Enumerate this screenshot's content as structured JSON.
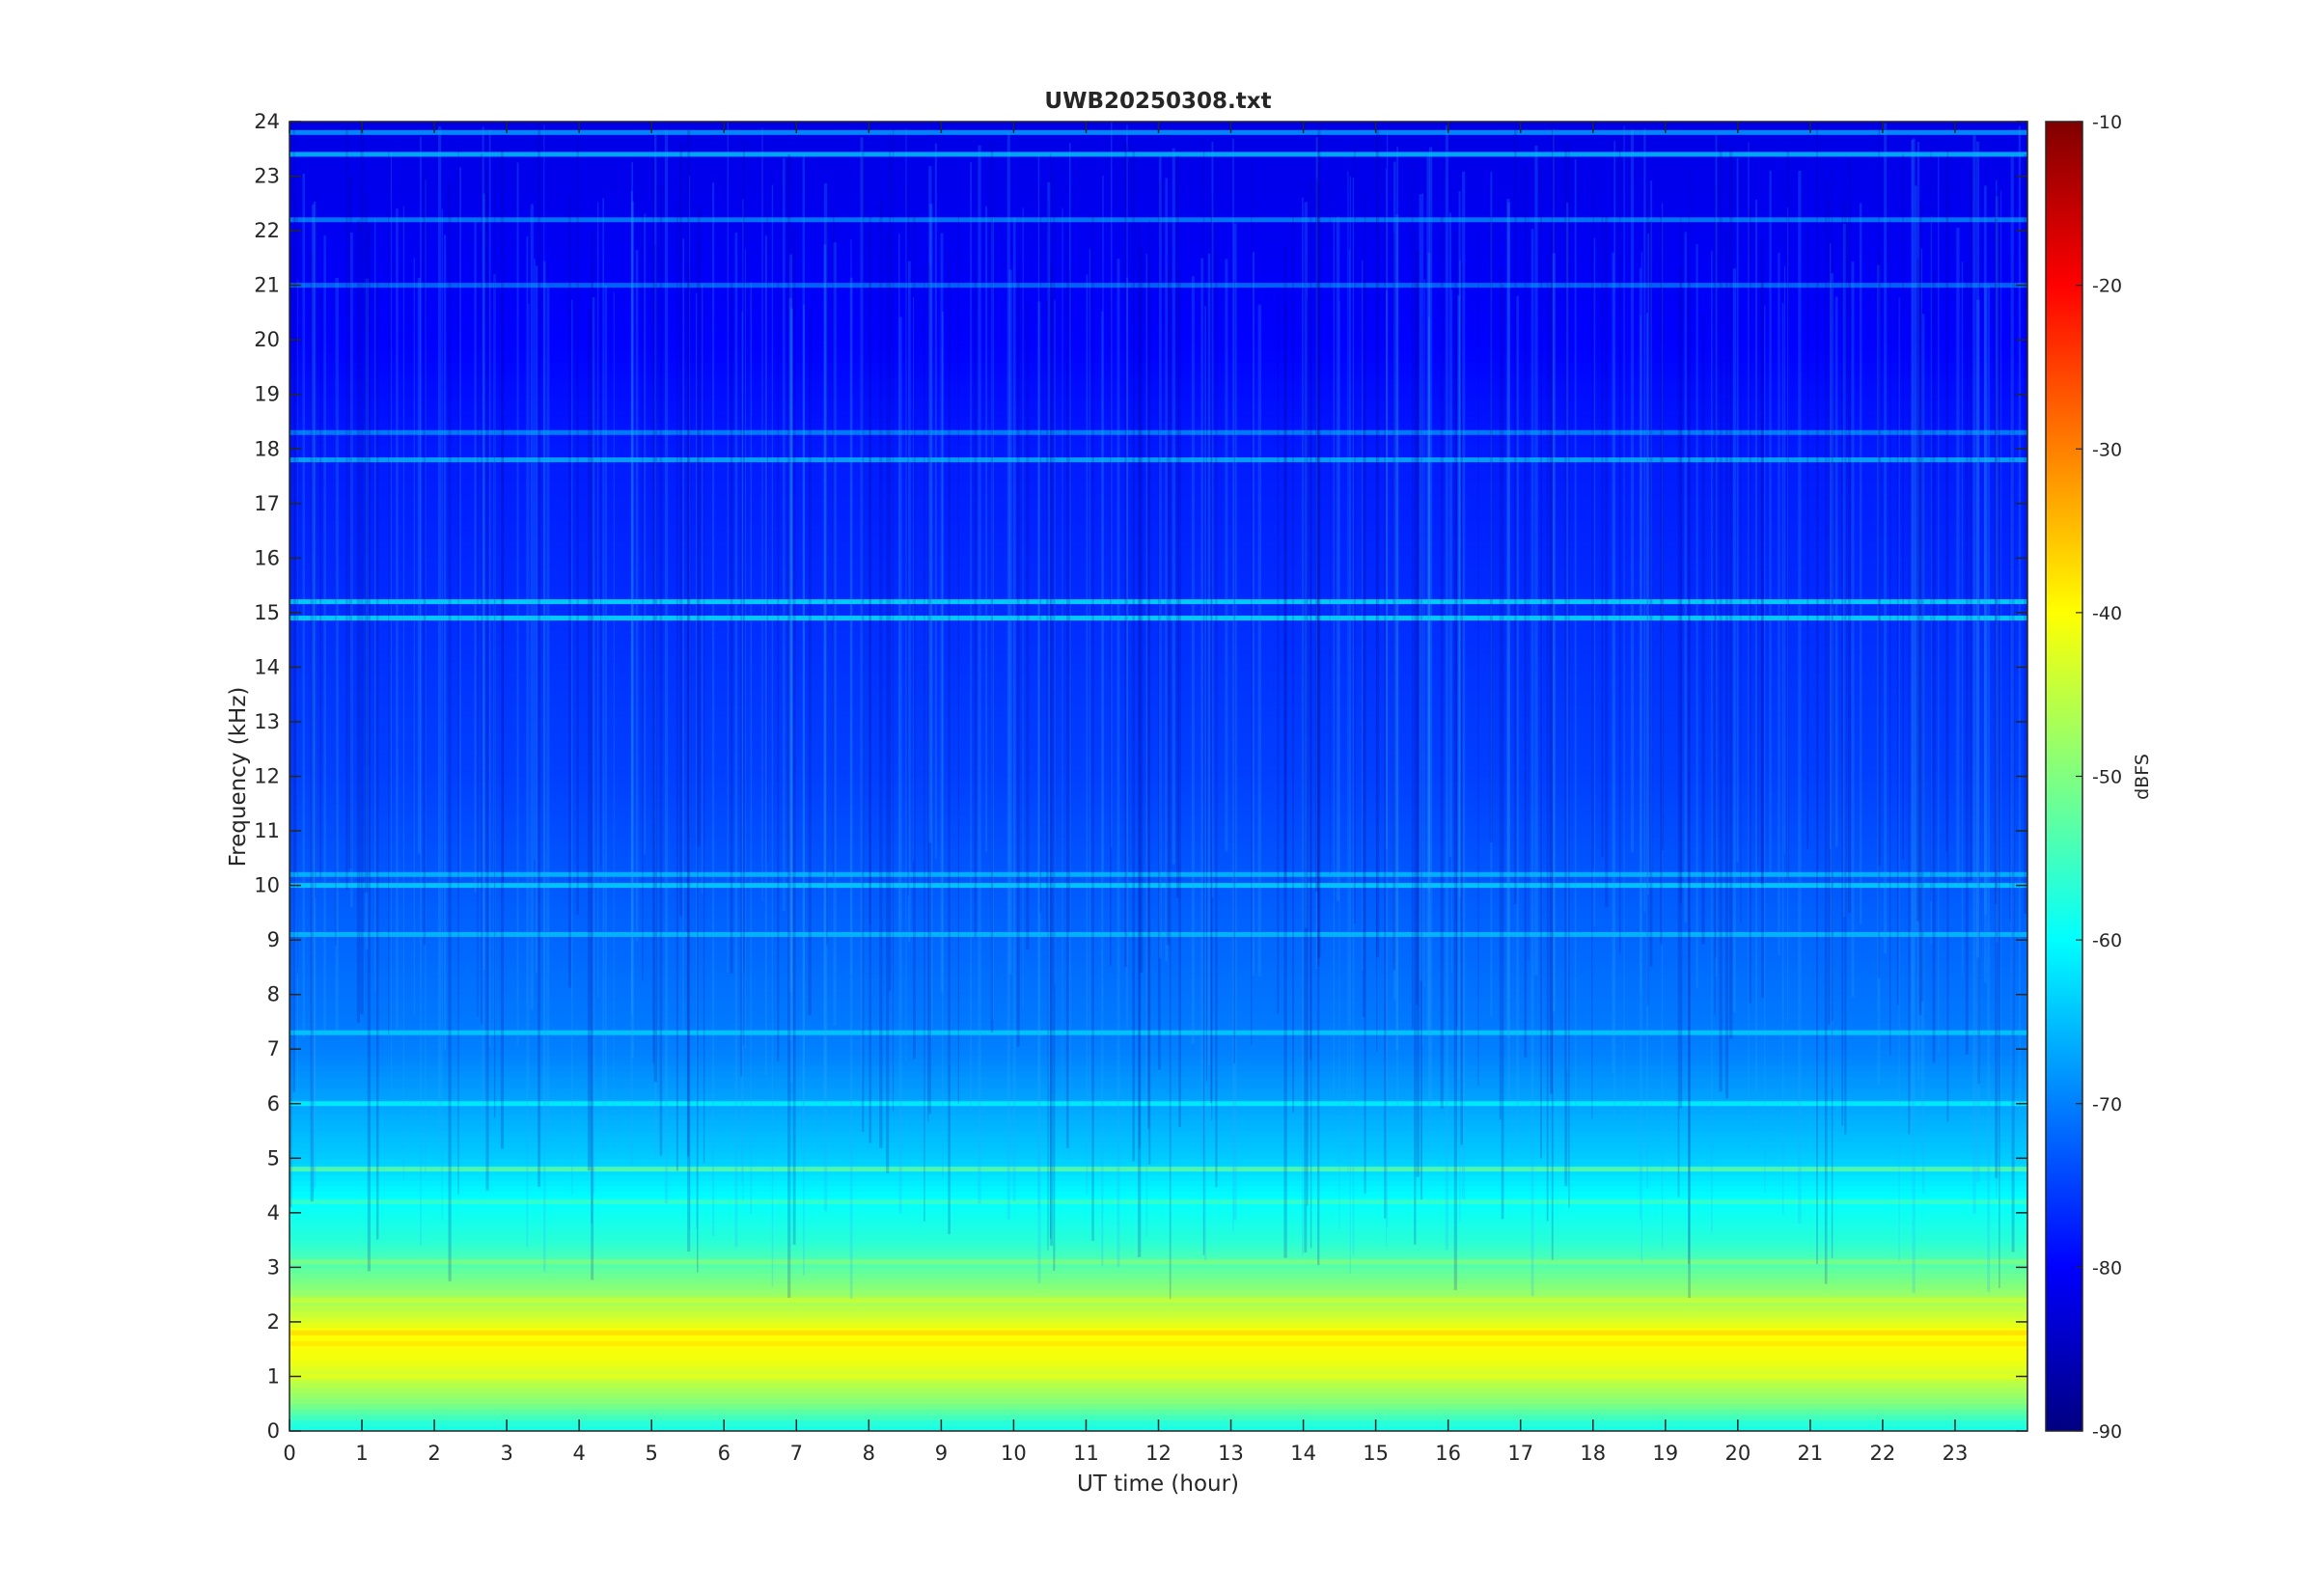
{
  "chart_data": {
    "type": "heatmap",
    "title": "UWB20250308.txt",
    "xlabel": "UT time (hour)",
    "ylabel": "Frequency (kHz)",
    "xlim": [
      0,
      24
    ],
    "ylim": [
      0,
      24
    ],
    "x_ticks": [
      "0",
      "1",
      "2",
      "3",
      "4",
      "5",
      "6",
      "7",
      "8",
      "9",
      "10",
      "11",
      "12",
      "13",
      "14",
      "15",
      "16",
      "17",
      "18",
      "19",
      "20",
      "21",
      "22",
      "23"
    ],
    "y_ticks": [
      "0",
      "1",
      "2",
      "3",
      "4",
      "5",
      "6",
      "7",
      "8",
      "9",
      "10",
      "11",
      "12",
      "13",
      "14",
      "15",
      "16",
      "17",
      "18",
      "19",
      "20",
      "21",
      "22",
      "23",
      "24"
    ],
    "colorbar": {
      "label": "dBFS",
      "colormap": "jet",
      "range": [
        -90,
        -10
      ],
      "ticks": [
        "-10",
        "-20",
        "-30",
        "-40",
        "-50",
        "-60",
        "-70",
        "-80",
        "-90"
      ]
    },
    "intensity_profile_by_frequency": [
      {
        "freq_khz": 0.1,
        "dbfs": -58
      },
      {
        "freq_khz": 0.5,
        "dbfs": -50
      },
      {
        "freq_khz": 1.0,
        "dbfs": -44
      },
      {
        "freq_khz": 1.3,
        "dbfs": -41
      },
      {
        "freq_khz": 1.8,
        "dbfs": -40
      },
      {
        "freq_khz": 2.2,
        "dbfs": -45
      },
      {
        "freq_khz": 2.6,
        "dbfs": -49
      },
      {
        "freq_khz": 3.0,
        "dbfs": -53
      },
      {
        "freq_khz": 3.5,
        "dbfs": -57
      },
      {
        "freq_khz": 4.0,
        "dbfs": -59
      },
      {
        "freq_khz": 4.5,
        "dbfs": -61
      },
      {
        "freq_khz": 5.0,
        "dbfs": -64
      },
      {
        "freq_khz": 6.0,
        "dbfs": -67
      },
      {
        "freq_khz": 7.0,
        "dbfs": -70
      },
      {
        "freq_khz": 8.0,
        "dbfs": -71
      },
      {
        "freq_khz": 9.0,
        "dbfs": -72
      },
      {
        "freq_khz": 10.0,
        "dbfs": -73
      },
      {
        "freq_khz": 12.0,
        "dbfs": -75
      },
      {
        "freq_khz": 14.0,
        "dbfs": -76
      },
      {
        "freq_khz": 16.0,
        "dbfs": -77
      },
      {
        "freq_khz": 18.0,
        "dbfs": -78
      },
      {
        "freq_khz": 20.0,
        "dbfs": -80
      },
      {
        "freq_khz": 22.0,
        "dbfs": -81
      },
      {
        "freq_khz": 24.0,
        "dbfs": -82
      }
    ],
    "narrowband_lines": [
      {
        "freq_khz": 1.0,
        "dbfs": -42
      },
      {
        "freq_khz": 1.6,
        "dbfs": -38
      },
      {
        "freq_khz": 1.8,
        "dbfs": -37
      },
      {
        "freq_khz": 2.4,
        "dbfs": -44
      },
      {
        "freq_khz": 3.1,
        "dbfs": -50
      },
      {
        "freq_khz": 4.2,
        "dbfs": -55
      },
      {
        "freq_khz": 4.8,
        "dbfs": -52
      },
      {
        "freq_khz": 6.0,
        "dbfs": -60
      },
      {
        "freq_khz": 7.3,
        "dbfs": -63
      },
      {
        "freq_khz": 9.1,
        "dbfs": -64
      },
      {
        "freq_khz": 10.0,
        "dbfs": -62
      },
      {
        "freq_khz": 10.2,
        "dbfs": -64
      },
      {
        "freq_khz": 14.9,
        "dbfs": -60
      },
      {
        "freq_khz": 15.2,
        "dbfs": -60
      },
      {
        "freq_khz": 17.8,
        "dbfs": -64
      },
      {
        "freq_khz": 18.3,
        "dbfs": -68
      },
      {
        "freq_khz": 21.0,
        "dbfs": -70
      },
      {
        "freq_khz": 22.2,
        "dbfs": -68
      },
      {
        "freq_khz": 23.4,
        "dbfs": -63
      },
      {
        "freq_khz": 23.8,
        "dbfs": -66
      }
    ],
    "grid": false,
    "legend": "none"
  }
}
